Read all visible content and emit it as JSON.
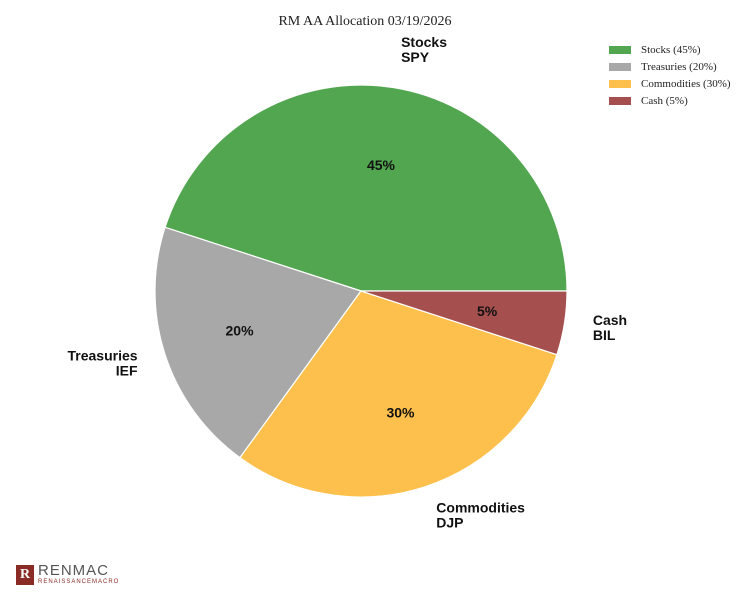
{
  "chart_data": {
    "type": "pie",
    "title": "RM AA Allocation 03/19/2026",
    "legend_position": "top-right",
    "slices": [
      {
        "legend": "Stocks (45%)",
        "label_line1": "Stocks",
        "label_line2": "SPY",
        "value": 45,
        "pct_label": "45%",
        "color": "#51a64f"
      },
      {
        "legend": "Treasuries (20%)",
        "label_line1": "Treasuries",
        "label_line2": "IEF",
        "value": 20,
        "pct_label": "20%",
        "color": "#a8a8a8"
      },
      {
        "legend": "Commodities (30%)",
        "label_line1": "Commodities",
        "label_line2": "DJP",
        "value": 30,
        "pct_label": "30%",
        "color": "#fec04c"
      },
      {
        "legend": "Cash (5%)",
        "label_line1": "Cash",
        "label_line2": "BIL",
        "value": 5,
        "pct_label": "5%",
        "color": "#a54f4f"
      }
    ]
  },
  "branding": {
    "logo_mark": "R",
    "logo_main": "RENMAC",
    "logo_sub": "RENAISSANCEMACRO"
  }
}
